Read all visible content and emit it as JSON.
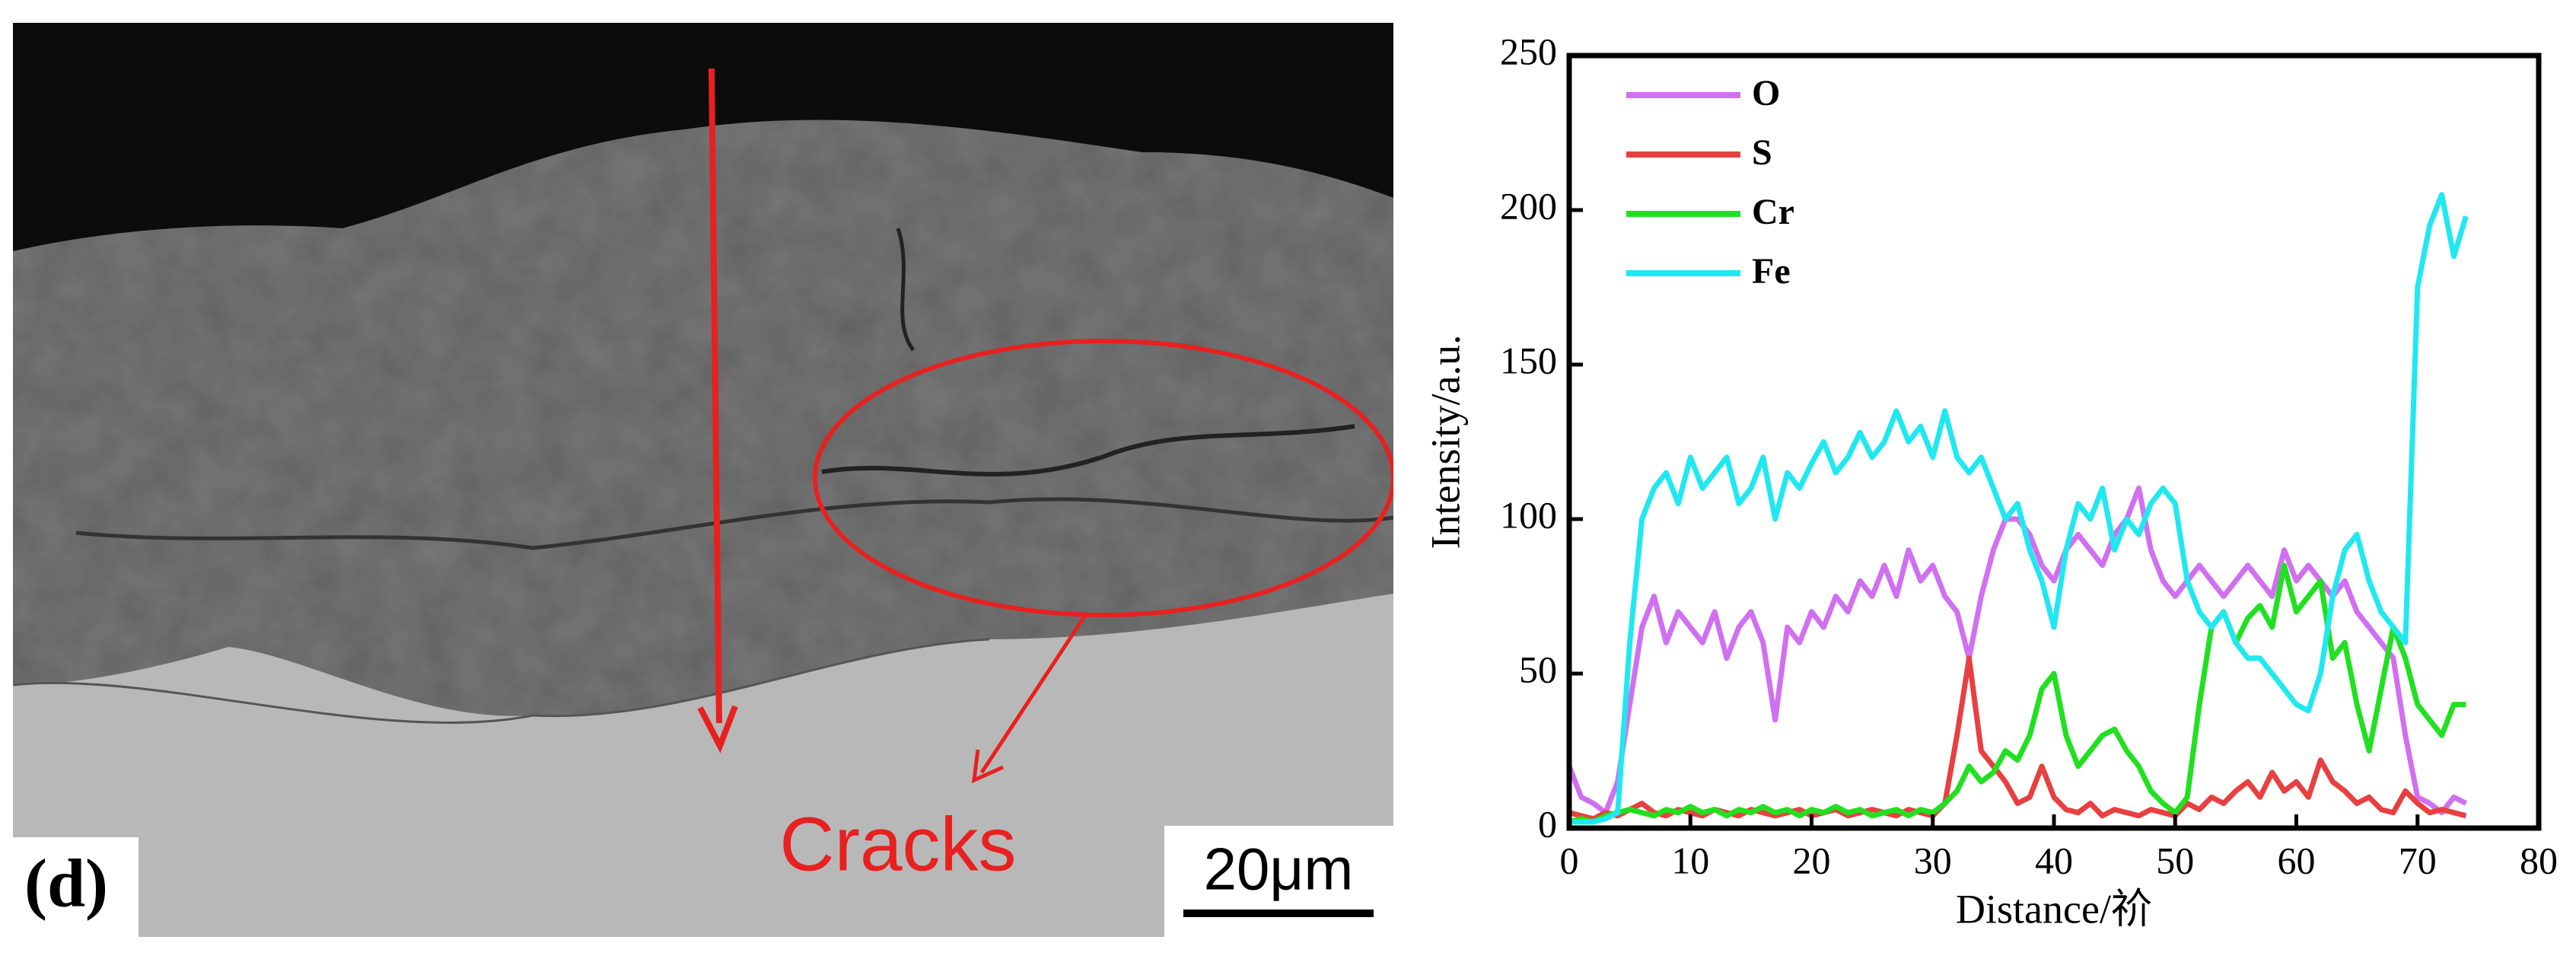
{
  "image_panel": {
    "panel_label": "(d)",
    "annotation": "Cracks",
    "scale_bar": "20μm"
  },
  "chart_data": {
    "type": "line",
    "xlabel": "Distance/祄",
    "ylabel": "Intensity/a.u.",
    "xlim": [
      0,
      80
    ],
    "xticks": [
      0,
      10,
      20,
      30,
      40,
      50,
      60,
      70,
      80
    ],
    "ylim": [
      0,
      250
    ],
    "yticks": [
      0,
      50,
      100,
      150,
      200,
      250
    ],
    "legend": "upper left",
    "x": [
      0,
      1,
      2,
      3,
      4,
      5,
      6,
      7,
      8,
      9,
      10,
      11,
      12,
      13,
      14,
      15,
      16,
      17,
      18,
      19,
      20,
      21,
      22,
      23,
      24,
      25,
      26,
      27,
      28,
      29,
      30,
      31,
      32,
      33,
      34,
      35,
      36,
      37,
      38,
      39,
      40,
      41,
      42,
      43,
      44,
      45,
      46,
      47,
      48,
      49,
      50,
      51,
      52,
      53,
      54,
      55,
      56,
      57,
      58,
      59,
      60,
      61,
      62,
      63,
      64,
      65,
      66,
      67,
      68,
      69,
      70,
      71,
      72,
      73,
      74
    ],
    "series": [
      {
        "name": "O",
        "color": "#d070f0",
        "values": [
          20,
          10,
          8,
          5,
          15,
          40,
          65,
          75,
          60,
          70,
          65,
          60,
          70,
          55,
          65,
          70,
          60,
          35,
          65,
          60,
          70,
          65,
          75,
          70,
          80,
          75,
          85,
          75,
          90,
          80,
          85,
          75,
          70,
          55,
          75,
          90,
          100,
          100,
          95,
          85,
          80,
          90,
          95,
          90,
          85,
          95,
          100,
          110,
          90,
          80,
          75,
          80,
          85,
          80,
          75,
          80,
          85,
          80,
          75,
          90,
          80,
          85,
          80,
          75,
          80,
          70,
          65,
          60,
          55,
          30,
          10,
          8,
          5,
          10,
          8
        ]
      },
      {
        "name": "S",
        "color": "#e84040",
        "values": [
          5,
          4,
          3,
          5,
          4,
          6,
          8,
          5,
          4,
          6,
          5,
          4,
          6,
          5,
          4,
          6,
          5,
          4,
          5,
          6,
          4,
          5,
          6,
          4,
          5,
          6,
          5,
          4,
          6,
          5,
          4,
          8,
          30,
          55,
          25,
          20,
          15,
          8,
          10,
          20,
          10,
          6,
          5,
          8,
          4,
          6,
          5,
          4,
          6,
          5,
          4,
          8,
          6,
          10,
          8,
          12,
          15,
          10,
          18,
          12,
          15,
          10,
          22,
          15,
          12,
          8,
          10,
          6,
          5,
          12,
          8,
          5,
          6,
          5,
          4
        ]
      },
      {
        "name": "Cr",
        "color": "#20e020",
        "values": [
          2,
          3,
          2,
          4,
          5,
          6,
          5,
          4,
          6,
          5,
          7,
          5,
          6,
          4,
          6,
          5,
          7,
          5,
          6,
          4,
          6,
          5,
          7,
          5,
          6,
          4,
          5,
          6,
          4,
          6,
          5,
          8,
          12,
          20,
          15,
          18,
          25,
          22,
          30,
          45,
          50,
          30,
          20,
          25,
          30,
          32,
          25,
          20,
          12,
          8,
          5,
          10,
          40,
          65,
          70,
          60,
          68,
          72,
          65,
          85,
          70,
          75,
          80,
          55,
          60,
          40,
          25,
          45,
          65,
          55,
          40,
          35,
          30,
          40,
          40
        ]
      },
      {
        "name": "Fe",
        "color": "#20e8f0",
        "values": [
          2,
          2,
          2,
          3,
          5,
          60,
          100,
          110,
          115,
          105,
          120,
          110,
          115,
          120,
          105,
          110,
          120,
          100,
          115,
          110,
          118,
          125,
          115,
          120,
          128,
          120,
          125,
          135,
          125,
          130,
          120,
          135,
          120,
          115,
          120,
          110,
          100,
          105,
          90,
          80,
          65,
          90,
          105,
          100,
          110,
          90,
          100,
          95,
          105,
          110,
          105,
          80,
          70,
          65,
          70,
          60,
          55,
          55,
          50,
          45,
          40,
          38,
          50,
          75,
          90,
          95,
          80,
          70,
          65,
          60,
          175,
          195,
          205,
          185,
          198
        ]
      }
    ]
  }
}
